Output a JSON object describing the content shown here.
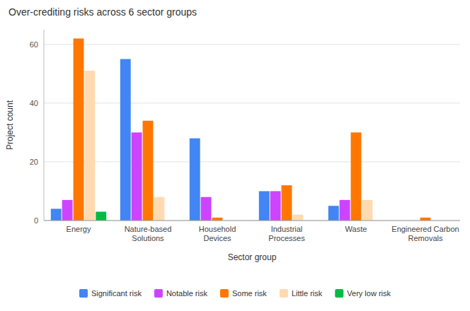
{
  "chart_data": {
    "type": "bar",
    "title": "Over-crediting risks across 6 sector groups",
    "xlabel": "Sector group",
    "ylabel": "Project count",
    "categories": [
      "Energy",
      "Nature-based\nSolutions",
      "Household\nDevices",
      "Industrial\nProcesses",
      "Waste",
      "Engineered Carbon\nRemovals"
    ],
    "series": [
      {
        "name": "Significant risk",
        "color": "#4285F4",
        "values": [
          4,
          55,
          28,
          10,
          5,
          0
        ]
      },
      {
        "name": "Notable risk",
        "color": "#CC44FF",
        "values": [
          7,
          30,
          8,
          10,
          7,
          0
        ]
      },
      {
        "name": "Some risk",
        "color": "#FF7700",
        "values": [
          62,
          34,
          1,
          12,
          30,
          1
        ]
      },
      {
        "name": "Little risk",
        "color": "#FFDAB0",
        "values": [
          51,
          8,
          0,
          2,
          7,
          0
        ]
      },
      {
        "name": "Very low risk",
        "color": "#00BB44",
        "values": [
          3,
          0,
          0,
          0,
          0,
          0
        ]
      }
    ],
    "ylim": [
      0,
      65
    ],
    "yticks": [
      0,
      20,
      40,
      60
    ],
    "grid": true,
    "legend": "bottom"
  }
}
